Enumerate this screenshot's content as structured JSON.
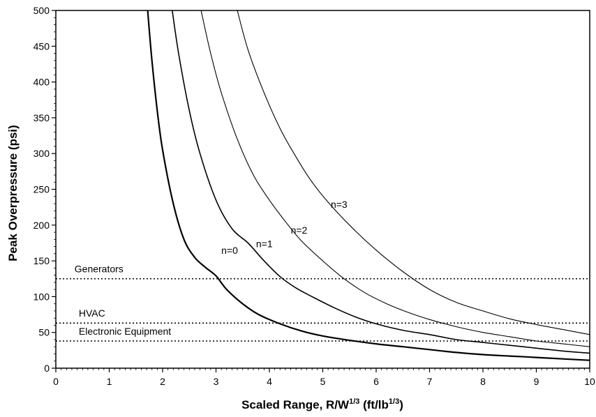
{
  "chart_data": {
    "type": "line",
    "xlabel": {
      "main": "Scaled Range, R/W",
      "exp1": "1/3",
      "mid": " (ft/lb",
      "exp2": "1/3",
      "end": ")"
    },
    "ylabel": "Peak Overpressure (psi)",
    "xlim": [
      0,
      10
    ],
    "ylim": [
      0,
      500
    ],
    "x_ticks": [
      0,
      1,
      2,
      3,
      4,
      5,
      6,
      7,
      8,
      9,
      10
    ],
    "y_ticks": [
      0,
      50,
      100,
      150,
      200,
      250,
      300,
      350,
      400,
      450,
      500
    ],
    "grid": false,
    "series": [
      {
        "name": "n=0",
        "label_at": [
          3.1,
          160
        ],
        "stroke": 2.2,
        "points": [
          [
            1.72,
            500
          ],
          [
            1.8,
            430
          ],
          [
            1.9,
            360
          ],
          [
            2.0,
            305
          ],
          [
            2.2,
            230
          ],
          [
            2.4,
            180
          ],
          [
            2.6,
            155
          ],
          [
            2.8,
            141
          ],
          [
            3.0,
            129
          ],
          [
            3.2,
            110
          ],
          [
            3.5,
            90
          ],
          [
            3.8,
            75
          ],
          [
            4.2,
            62
          ],
          [
            4.6,
            52
          ],
          [
            5.0,
            45
          ],
          [
            5.5,
            39
          ],
          [
            6.0,
            34
          ],
          [
            6.5,
            30
          ],
          [
            7.0,
            26
          ],
          [
            7.5,
            22
          ],
          [
            8.0,
            19
          ],
          [
            8.5,
            17
          ],
          [
            9.0,
            15
          ],
          [
            9.5,
            13
          ],
          [
            10.0,
            11
          ]
        ]
      },
      {
        "name": "n=1",
        "label_at": [
          3.75,
          169
        ],
        "stroke": 1.6,
        "points": [
          [
            2.18,
            500
          ],
          [
            2.3,
            440
          ],
          [
            2.5,
            360
          ],
          [
            2.7,
            300
          ],
          [
            3.0,
            235
          ],
          [
            3.3,
            195
          ],
          [
            3.6,
            175
          ],
          [
            3.9,
            150
          ],
          [
            4.2,
            128
          ],
          [
            4.5,
            112
          ],
          [
            4.8,
            100
          ],
          [
            5.2,
            85
          ],
          [
            5.6,
            72
          ],
          [
            6.0,
            62
          ],
          [
            6.5,
            53
          ],
          [
            7.0,
            47
          ],
          [
            7.5,
            40
          ],
          [
            8.0,
            36
          ],
          [
            8.5,
            32
          ],
          [
            9.0,
            28
          ],
          [
            9.5,
            24
          ],
          [
            10.0,
            21
          ]
        ]
      },
      {
        "name": "n=2",
        "label_at": [
          4.4,
          188
        ],
        "stroke": 1.1,
        "points": [
          [
            2.72,
            500
          ],
          [
            2.9,
            440
          ],
          [
            3.1,
            385
          ],
          [
            3.4,
            320
          ],
          [
            3.7,
            270
          ],
          [
            4.0,
            235
          ],
          [
            4.3,
            205
          ],
          [
            4.6,
            178
          ],
          [
            5.0,
            150
          ],
          [
            5.4,
            125
          ],
          [
            5.8,
            105
          ],
          [
            6.2,
            90
          ],
          [
            6.6,
            78
          ],
          [
            7.0,
            68
          ],
          [
            7.5,
            58
          ],
          [
            8.0,
            50
          ],
          [
            8.5,
            44
          ],
          [
            9.0,
            38
          ],
          [
            9.5,
            34
          ],
          [
            10.0,
            30
          ]
        ]
      },
      {
        "name": "n=3",
        "label_at": [
          5.15,
          224
        ],
        "stroke": 1.1,
        "points": [
          [
            3.4,
            500
          ],
          [
            3.6,
            445
          ],
          [
            3.9,
            385
          ],
          [
            4.2,
            335
          ],
          [
            4.5,
            295
          ],
          [
            4.8,
            260
          ],
          [
            5.1,
            232
          ],
          [
            5.5,
            200
          ],
          [
            6.0,
            165
          ],
          [
            6.5,
            135
          ],
          [
            7.0,
            110
          ],
          [
            7.5,
            92
          ],
          [
            8.0,
            80
          ],
          [
            8.5,
            69
          ],
          [
            9.0,
            61
          ],
          [
            9.5,
            54
          ],
          [
            10.0,
            47
          ]
        ]
      }
    ],
    "reference_lines": [
      {
        "label": "Generators",
        "y": 125,
        "label_at": [
          0.35,
          134
        ]
      },
      {
        "label": "HVAC",
        "y": 63,
        "label_at": [
          0.43,
          72
        ]
      },
      {
        "label": "Electronic Equipment",
        "y": 38,
        "label_at": [
          0.43,
          47
        ]
      }
    ]
  }
}
